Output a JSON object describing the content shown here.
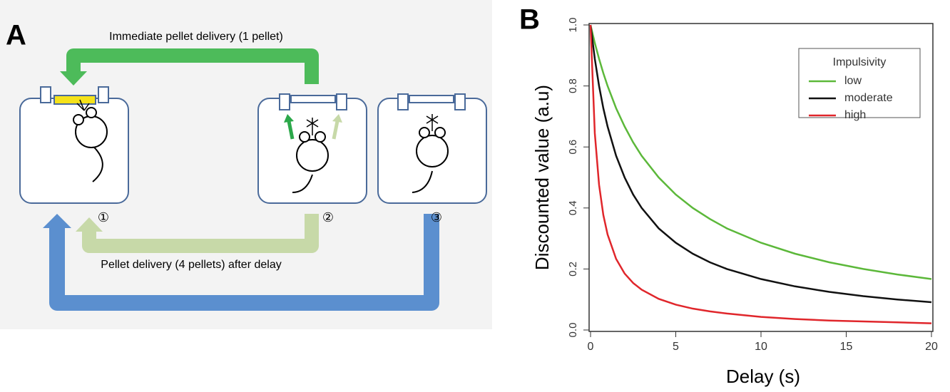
{
  "panel_a": {
    "label": "A",
    "top_arrow": "Immediate pellet delivery (1 pellet)",
    "bottom_arrow": "Pellet delivery (4 pellets) after delay",
    "steps": [
      "①",
      "②",
      "③"
    ]
  },
  "chart_data": {
    "type": "line",
    "panel": "B",
    "x_label": "Delay (s)",
    "y_label": "Discounted value (a.u)",
    "legend_title": "Impulsivity",
    "legend": "upper right",
    "x": [
      0,
      0.25,
      0.5,
      0.75,
      1,
      1.5,
      2,
      2.5,
      3,
      4,
      5,
      6,
      7,
      8,
      10,
      12,
      14,
      16,
      18,
      20
    ],
    "series": [
      {
        "name": "low",
        "color": "#5cb83a",
        "values": [
          1,
          0.941,
          0.889,
          0.842,
          0.8,
          0.727,
          0.667,
          0.615,
          0.571,
          0.5,
          0.444,
          0.4,
          0.364,
          0.333,
          0.286,
          0.25,
          0.222,
          0.2,
          0.182,
          0.167
        ]
      },
      {
        "name": "moderate",
        "color": "#111111",
        "values": [
          1,
          0.889,
          0.8,
          0.727,
          0.667,
          0.571,
          0.5,
          0.444,
          0.4,
          0.333,
          0.286,
          0.25,
          0.222,
          0.2,
          0.167,
          0.143,
          0.125,
          0.111,
          0.1,
          0.091
        ]
      },
      {
        "name": "high",
        "color": "#e0262b",
        "values": [
          1,
          0.645,
          0.476,
          0.377,
          0.313,
          0.233,
          0.185,
          0.154,
          0.132,
          0.102,
          0.083,
          0.07,
          0.061,
          0.054,
          0.043,
          0.036,
          0.031,
          0.028,
          0.025,
          0.022
        ]
      }
    ],
    "xlim": [
      0,
      20
    ],
    "xticks": [
      0,
      5,
      10,
      15,
      20
    ],
    "ylim": [
      0,
      1
    ],
    "yticks": [
      {
        "value": 0,
        "label": "0.0"
      },
      0.2,
      0.4,
      0.6,
      0.8,
      {
        "value": 1,
        "label": "1.0"
      }
    ]
  }
}
